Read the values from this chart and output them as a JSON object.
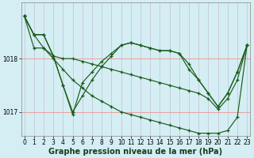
{
  "background_color": "#d4eef4",
  "grid_color_v": "#c8c8d8",
  "grid_color_h": "#e8a0a0",
  "line_color": "#1a5c1a",
  "marker_color": "#1a5c1a",
  "xlabel": "Graphe pression niveau de la mer (hPa)",
  "xlabel_fontsize": 7,
  "xlim": [
    -0.3,
    23.3
  ],
  "ylim": [
    1016.55,
    1019.05
  ],
  "ytick_vals": [
    1017,
    1018
  ],
  "xticks": [
    0,
    1,
    2,
    3,
    4,
    5,
    6,
    7,
    8,
    9,
    10,
    11,
    12,
    13,
    14,
    15,
    16,
    17,
    18,
    19,
    20,
    21,
    22,
    23
  ],
  "tick_fontsize": 5.5,
  "series": [
    [
      1018.8,
      1018.45,
      1018.45,
      1018.05,
      1017.5,
      1017.0,
      1017.3,
      1017.6,
      1017.85,
      1018.05,
      1018.25,
      1018.3,
      1018.25,
      1018.2,
      1018.15,
      1018.15,
      1018.1,
      1017.8,
      1017.6,
      1017.35,
      1017.1,
      1017.35,
      1017.75,
      1018.25
    ],
    [
      1018.8,
      1018.45,
      1018.45,
      1018.05,
      1017.5,
      1016.95,
      1017.55,
      1017.75,
      1017.95,
      1018.1,
      1018.25,
      1018.3,
      1018.25,
      1018.2,
      1018.15,
      1018.15,
      1018.1,
      1017.9,
      1017.6,
      1017.35,
      1017.1,
      1017.35,
      1017.75,
      1018.25
    ],
    [
      1018.8,
      1018.2,
      1018.2,
      1018.05,
      1018.0,
      1018.0,
      1017.95,
      1017.9,
      1017.85,
      1017.8,
      1017.75,
      1017.7,
      1017.65,
      1017.6,
      1017.55,
      1017.5,
      1017.45,
      1017.4,
      1017.35,
      1017.25,
      1017.05,
      1017.25,
      1017.6,
      1018.25
    ],
    [
      1018.8,
      1018.45,
      1018.2,
      1018.0,
      1017.8,
      1017.6,
      1017.45,
      1017.3,
      1017.2,
      1017.1,
      1017.0,
      1016.95,
      1016.9,
      1016.85,
      1016.8,
      1016.75,
      1016.7,
      1016.65,
      1016.6,
      1016.6,
      1016.6,
      1016.65,
      1016.9,
      1018.25
    ]
  ]
}
